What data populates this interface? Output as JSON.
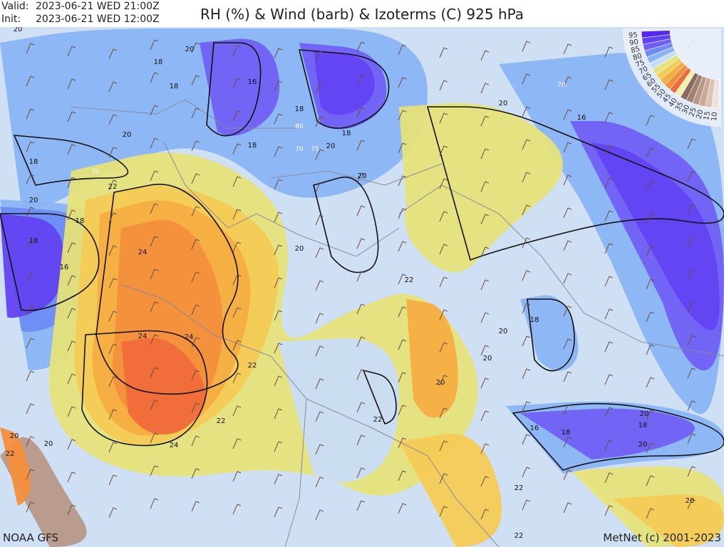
{
  "header": {
    "valid_label": "Valid:",
    "valid_time": "2023-06-21 WED 21:00Z",
    "init_label": "Init:",
    "init_time": "2023-06-21 WED 12:00Z",
    "title": "RH (%) & Wind (barb) & Izoterms (C) 925 hPa"
  },
  "legend": {
    "levels": [
      "95",
      "90",
      "85",
      "80",
      "75",
      "70",
      "65",
      "60",
      "55",
      "50",
      "45",
      "40",
      "35",
      "30",
      "25",
      "20",
      "15",
      "10"
    ],
    "colors": [
      "#5527ef",
      "#6243f2",
      "#715ff4",
      "#6f8cf3",
      "#8ab4f6",
      "#c9dcf6",
      "#e6e27a",
      "#f4cb55",
      "#f5ad42",
      "#f38f3c",
      "#f06c3a",
      "#f0f0b0",
      "#8a6a60",
      "#a08070",
      "#b89888",
      "#c8aa9a",
      "#dcc2b4",
      "#f0e2da"
    ]
  },
  "map": {
    "background_color": "#cfe0f5",
    "isotherm_labels": [
      "20",
      "20",
      "18",
      "18",
      "16",
      "18",
      "18",
      "20",
      "20",
      "18",
      "18",
      "16",
      "20",
      "20",
      "22",
      "20",
      "18",
      "18",
      "16",
      "24",
      "24",
      "24",
      "20",
      "22",
      "22",
      "22",
      "22",
      "18",
      "20",
      "20",
      "20",
      "16",
      "18",
      "18",
      "20",
      "22",
      "24",
      "20",
      "20",
      "20",
      "22",
      "20",
      "22",
      "70",
      "70",
      "80",
      "70",
      "75"
    ]
  },
  "footer": {
    "source": "NOAA GFS",
    "copyright": "MetNet (c) 2001-2023"
  }
}
